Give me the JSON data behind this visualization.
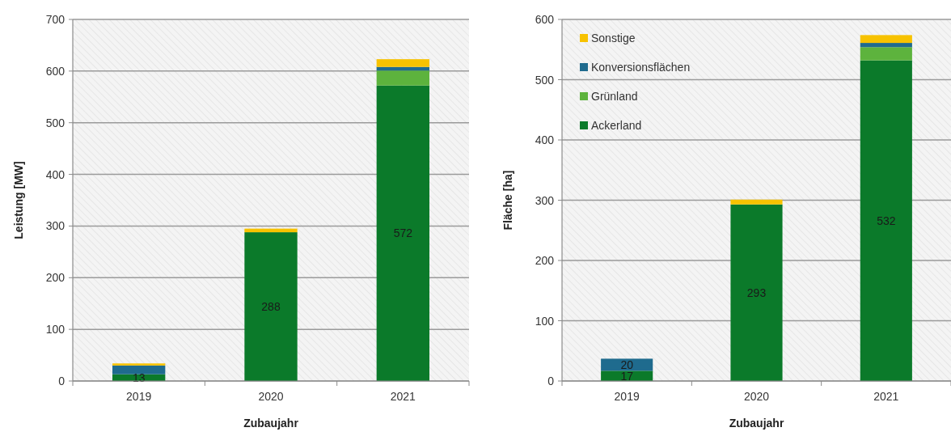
{
  "chart_data": [
    {
      "type": "bar",
      "stacked": true,
      "categories": [
        "2019",
        "2020",
        "2021"
      ],
      "xlabel": "Zubaujahr",
      "ylabel": "Leistung [MW]",
      "ylim": [
        0,
        700
      ],
      "yticks": [
        0,
        100,
        200,
        300,
        400,
        500,
        600,
        700
      ],
      "grid": "y",
      "legend": false,
      "series": [
        {
          "color": "#0b7a2a",
          "values": [
            13,
            288,
            572
          ],
          "value_labels": [
            "13",
            "288",
            "572"
          ]
        },
        {
          "color": "#5db33d",
          "values": [
            0,
            0,
            29
          ]
        },
        {
          "color": "#1f6b8e",
          "values": [
            17,
            0,
            7
          ]
        },
        {
          "color": "#f7c200",
          "values": [
            4,
            7,
            15
          ]
        }
      ]
    },
    {
      "type": "bar",
      "stacked": true,
      "categories": [
        "2019",
        "2020",
        "2021"
      ],
      "xlabel": "Zubaujahr",
      "ylabel": "Fläche [ha]",
      "ylim": [
        0,
        600
      ],
      "yticks": [
        0,
        100,
        200,
        300,
        400,
        500,
        600
      ],
      "grid": "y",
      "legend": "top left",
      "series": [
        {
          "name": "Ackerland",
          "color": "#0b7a2a",
          "values": [
            17,
            293,
            532
          ],
          "value_labels": [
            "17",
            "293",
            "532"
          ]
        },
        {
          "name": "Grünland",
          "color": "#5db33d",
          "values": [
            0,
            0,
            22
          ]
        },
        {
          "name": "Konversionsflächen",
          "color": "#1f6b8e",
          "values": [
            20,
            0,
            7
          ],
          "value_labels": [
            "20",
            null,
            null
          ]
        },
        {
          "name": "Sonstige",
          "color": "#f7c200",
          "values": [
            0,
            8,
            13
          ]
        }
      ]
    }
  ]
}
